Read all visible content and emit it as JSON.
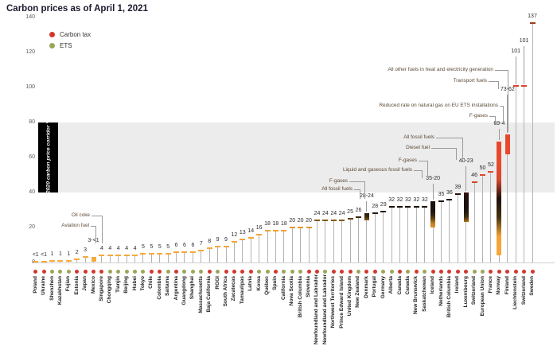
{
  "title": "Carbon prices as of April 1, 2021",
  "legend": [
    {
      "label": "Carbon tax",
      "color": "#d2372e"
    },
    {
      "label": "ETS",
      "color": "#9ca659"
    }
  ],
  "chart_data": {
    "type": "bar",
    "title": "Carbon prices as of April 1, 2021",
    "ylabel": "",
    "xlabel": "",
    "ylim": [
      0,
      140
    ],
    "yticks": [
      0,
      20,
      40,
      60,
      80,
      100,
      120,
      140
    ],
    "grid": false,
    "legend_position": "top-left",
    "band": {
      "from": 40,
      "to": 80,
      "label": "2020 carbon price corridor *",
      "color": "#ececec"
    },
    "series_colors": {
      "Carbon tax": "#d2372e",
      "ETS": "#9ca659"
    },
    "color_scale": [
      [
        0,
        "#F7AB3F"
      ],
      [
        18,
        "#F2A035"
      ],
      [
        22,
        "#D08A20"
      ],
      [
        26,
        "#3A2A0E"
      ],
      [
        30,
        "#18120D"
      ],
      [
        38,
        "#200F08"
      ],
      [
        42,
        "#551509"
      ],
      [
        46,
        "#D0482D"
      ],
      [
        48,
        "#DA4A2E"
      ],
      [
        56,
        "#E84A2D"
      ],
      [
        95,
        "#E6422B"
      ],
      [
        120,
        "#C93F28"
      ],
      [
        140,
        "#943A22"
      ]
    ],
    "items": [
      {
        "name": "Poland",
        "type": "Carbon tax",
        "label": "<1",
        "high": 0.5,
        "low": null
      },
      {
        "name": "Ukraine",
        "type": "Carbon tax",
        "label": "<1",
        "high": 0.5,
        "low": null
      },
      {
        "name": "Shenzhen",
        "type": "ETS",
        "label": "1",
        "high": 1,
        "low": null
      },
      {
        "name": "Kazakhstan",
        "type": "ETS",
        "label": "1",
        "high": 1,
        "low": null
      },
      {
        "name": "Fujian",
        "type": "ETS",
        "label": "1",
        "high": 1,
        "low": null
      },
      {
        "name": "Estonia",
        "type": "Carbon tax",
        "label": "2",
        "high": 2,
        "low": null
      },
      {
        "name": "Japan",
        "type": "Carbon tax",
        "label": "3",
        "high": 3,
        "low": null
      },
      {
        "name": "Mexico",
        "type": "Carbon tax",
        "label": "3-<1",
        "high": 3,
        "low": 0.4
      },
      {
        "name": "Singapore",
        "type": "Carbon tax",
        "label": "4",
        "high": 4,
        "low": null
      },
      {
        "name": "Chongqing",
        "type": "ETS",
        "label": "4",
        "high": 4,
        "low": null
      },
      {
        "name": "Tianjin",
        "type": "ETS",
        "label": "4",
        "high": 4,
        "low": null
      },
      {
        "name": "Beijing",
        "type": "ETS",
        "label": "4",
        "high": 4,
        "low": null
      },
      {
        "name": "Hubei",
        "type": "ETS",
        "label": "4",
        "high": 4,
        "low": null
      },
      {
        "name": "Tokyo",
        "type": "ETS",
        "label": "5",
        "high": 5,
        "low": null
      },
      {
        "name": "Chile",
        "type": "Carbon tax",
        "label": "5",
        "high": 5,
        "low": null
      },
      {
        "name": "Colombia",
        "type": "Carbon tax",
        "label": "5",
        "high": 5,
        "low": null
      },
      {
        "name": "Saitama",
        "type": "ETS",
        "label": "5",
        "high": 5,
        "low": null
      },
      {
        "name": "Argentina",
        "type": "Carbon tax",
        "label": "6",
        "high": 6,
        "low": null
      },
      {
        "name": "Guangdong",
        "type": "ETS",
        "label": "6",
        "high": 6,
        "low": null
      },
      {
        "name": "Shanghai",
        "type": "ETS",
        "label": "6",
        "high": 6,
        "low": null
      },
      {
        "name": "Massachusetts",
        "type": "ETS",
        "label": "7",
        "high": 7,
        "low": null
      },
      {
        "name": "Baja California",
        "type": "Carbon tax",
        "label": "8",
        "high": 8,
        "low": null
      },
      {
        "name": "RGGI",
        "type": "ETS",
        "label": "9",
        "high": 9,
        "low": null
      },
      {
        "name": "South Africa",
        "type": "Carbon tax",
        "label": "9",
        "high": 9,
        "low": null
      },
      {
        "name": "Zacatecas",
        "type": "Carbon tax",
        "label": "12",
        "high": 12,
        "low": null
      },
      {
        "name": "Tamaulipas",
        "type": "Carbon tax",
        "label": "13",
        "high": 13,
        "low": null
      },
      {
        "name": "Latvia",
        "type": "Carbon tax",
        "label": "14",
        "high": 14,
        "low": null
      },
      {
        "name": "Korea",
        "type": "ETS",
        "label": "16",
        "high": 16,
        "low": null
      },
      {
        "name": "Québec",
        "type": "ETS",
        "label": "18",
        "high": 18,
        "low": null
      },
      {
        "name": "Spain",
        "type": "Carbon tax",
        "label": "18",
        "high": 18,
        "low": null
      },
      {
        "name": "California",
        "type": "ETS",
        "label": "18",
        "high": 18,
        "low": null
      },
      {
        "name": "Nova Scotia",
        "type": "ETS",
        "label": "20",
        "high": 20,
        "low": null
      },
      {
        "name": "British Columbia",
        "type": "ETS",
        "label": "20",
        "high": 20,
        "low": null
      },
      {
        "name": "Slovenia",
        "type": "Carbon tax",
        "label": "20",
        "high": 20,
        "low": null
      },
      {
        "name": "Newfoundland and Labrador",
        "type": "Carbon tax",
        "label": "24",
        "high": 24,
        "low": null
      },
      {
        "name": "Newfoundland and Labrador",
        "type": "ETS",
        "label": "24",
        "high": 24,
        "low": null
      },
      {
        "name": "Northwest Territories",
        "type": "Carbon tax",
        "label": "24",
        "high": 24,
        "low": null
      },
      {
        "name": "Prince Edward Island",
        "type": "Carbon tax",
        "label": "24",
        "high": 24,
        "low": null
      },
      {
        "name": "United Kingdom",
        "type": "Carbon tax",
        "label": "25",
        "high": 25,
        "low": null
      },
      {
        "name": "New Zealand",
        "type": "ETS",
        "label": "26",
        "high": 26,
        "low": null
      },
      {
        "name": "Denmark",
        "type": "Carbon tax",
        "label": "28-24",
        "high": 28,
        "low": 24
      },
      {
        "name": "Portugal",
        "type": "Carbon tax",
        "label": "28",
        "high": 28,
        "low": null
      },
      {
        "name": "Germany",
        "type": "ETS",
        "label": "29",
        "high": 29,
        "low": null
      },
      {
        "name": "Alberta",
        "type": "ETS",
        "label": "32",
        "high": 32,
        "low": null
      },
      {
        "name": "Canada",
        "type": "Carbon tax",
        "label": "32",
        "high": 32,
        "low": null
      },
      {
        "name": "Canada",
        "type": "ETS",
        "label": "32",
        "high": 32,
        "low": null
      },
      {
        "name": "New Brunswick",
        "type": "Carbon tax",
        "label": "32",
        "high": 32,
        "low": null
      },
      {
        "name": "Saskatchewan",
        "type": "ETS",
        "label": "32",
        "high": 32,
        "low": null
      },
      {
        "name": "Iceland",
        "type": "Carbon tax",
        "label": "35-20",
        "high": 35,
        "low": 20
      },
      {
        "name": "Netherlands",
        "type": "Carbon tax",
        "label": "35",
        "high": 35,
        "low": null
      },
      {
        "name": "British Columbia",
        "type": "Carbon tax",
        "label": "36",
        "high": 36,
        "low": null
      },
      {
        "name": "Ireland",
        "type": "Carbon tax",
        "label": "39",
        "high": 39,
        "low": null
      },
      {
        "name": "Luxembourg",
        "type": "Carbon tax",
        "label": "40-23",
        "high": 40,
        "low": 23
      },
      {
        "name": "Switzerland",
        "type": "ETS",
        "label": "46",
        "high": 46,
        "low": null
      },
      {
        "name": "European Union",
        "type": "ETS",
        "label": "50",
        "high": 50,
        "low": null
      },
      {
        "name": "France",
        "type": "Carbon tax",
        "label": "52",
        "high": 52,
        "low": null
      },
      {
        "name": "Norway",
        "type": "Carbon tax",
        "label": "69-4",
        "high": 69,
        "low": 4
      },
      {
        "name": "Finland",
        "type": "Carbon tax",
        "label": "73-62",
        "high": 73,
        "low": 62
      },
      {
        "name": "Liechtenstein",
        "type": "Carbon tax",
        "label": "101",
        "high": 101,
        "low": null
      },
      {
        "name": "Switzerland",
        "type": "Carbon tax",
        "label": "101",
        "high": 101,
        "low": null
      },
      {
        "name": "Sweden",
        "type": "Carbon tax",
        "label": "137",
        "high": 137,
        "low": null
      }
    ],
    "annotations": [
      {
        "text": "Oil coke",
        "target": "Mexico"
      },
      {
        "text": "Aviation fuel",
        "target": "Mexico"
      },
      {
        "text": "F-gases",
        "target": "Denmark"
      },
      {
        "text": "All fossil fuels",
        "target": "Denmark"
      },
      {
        "text": "F-gases",
        "target": "Iceland"
      },
      {
        "text": "Liquid and gaseous fossil fuels",
        "target": "Iceland"
      },
      {
        "text": "All fossil fuels",
        "target": "Luxembourg"
      },
      {
        "text": "Diesel fuel",
        "target": "Luxembourg"
      },
      {
        "text": "F-gases",
        "target": "Norway"
      },
      {
        "text": "Reduced rate on natural gas on EU ETS installations",
        "target": "Norway"
      },
      {
        "text": "Transport fuels",
        "target": "Finland"
      },
      {
        "text": "All other fuels in heat and electricity generation",
        "target": "Finland"
      }
    ]
  }
}
